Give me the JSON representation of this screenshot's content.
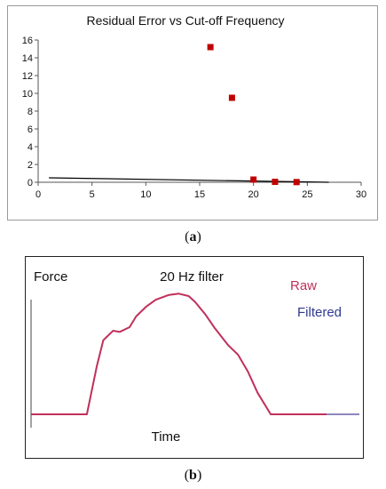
{
  "captions": [
    {
      "open": "(",
      "letter": "a",
      "close": ")"
    },
    {
      "open": "(",
      "letter": "b",
      "close": ")"
    }
  ],
  "chart_data": [
    {
      "type": "scatter",
      "title": "Residual Error vs Cut-off Frequency",
      "xlabel": "",
      "ylabel": "",
      "xlim": [
        0,
        30
      ],
      "ylim": [
        0,
        16
      ],
      "xticks": [
        0,
        5,
        10,
        15,
        20,
        25,
        30
      ],
      "yticks": [
        0,
        2,
        4,
        6,
        8,
        10,
        12,
        14,
        16
      ],
      "grid": false,
      "series": [
        {
          "marker": "square",
          "color": "#c00000",
          "x": [
            16,
            18,
            20,
            22,
            24
          ],
          "y": [
            15.2,
            9.5,
            0.3,
            0.05,
            0.02
          ]
        }
      ],
      "trendline": {
        "color": "#000000",
        "x": [
          1,
          27
        ],
        "y": [
          0.5,
          0.0
        ]
      }
    },
    {
      "type": "line",
      "title": "20 Hz filter",
      "xlabel": "Time",
      "ylabel": "Force",
      "legend_position": "top-right",
      "series": [
        {
          "name": "Raw",
          "color": "#c0305a",
          "x": [
            0,
            0.17,
            0.2,
            0.22,
            0.25,
            0.27,
            0.3,
            0.32,
            0.35,
            0.38,
            0.42,
            0.45,
            0.48,
            0.5,
            0.53,
            0.56,
            0.6,
            0.63,
            0.66,
            0.69,
            0.73,
            0.76,
            0.8,
            0.85,
            0.9
          ],
          "y": [
            0,
            0,
            0.4,
            0.62,
            0.7,
            0.69,
            0.73,
            0.82,
            0.9,
            0.96,
            1.0,
            1.01,
            0.99,
            0.94,
            0.84,
            0.72,
            0.58,
            0.5,
            0.36,
            0.18,
            0.0,
            0.0,
            0.0,
            0.0,
            0.0
          ]
        },
        {
          "name": "Filtered",
          "color": "#6a5fa8",
          "x": [
            0,
            0.17,
            0.2,
            0.22,
            0.25,
            0.27,
            0.3,
            0.32,
            0.35,
            0.38,
            0.42,
            0.45,
            0.48,
            0.5,
            0.53,
            0.56,
            0.6,
            0.63,
            0.66,
            0.69,
            0.73,
            0.76,
            0.8,
            0.85,
            1.0
          ],
          "y": [
            0,
            0,
            0.4,
            0.62,
            0.7,
            0.69,
            0.73,
            0.82,
            0.9,
            0.96,
            1.0,
            1.01,
            0.99,
            0.94,
            0.84,
            0.72,
            0.58,
            0.5,
            0.36,
            0.18,
            0.0,
            0.0,
            0.0,
            0.0,
            0.0
          ]
        }
      ]
    }
  ]
}
